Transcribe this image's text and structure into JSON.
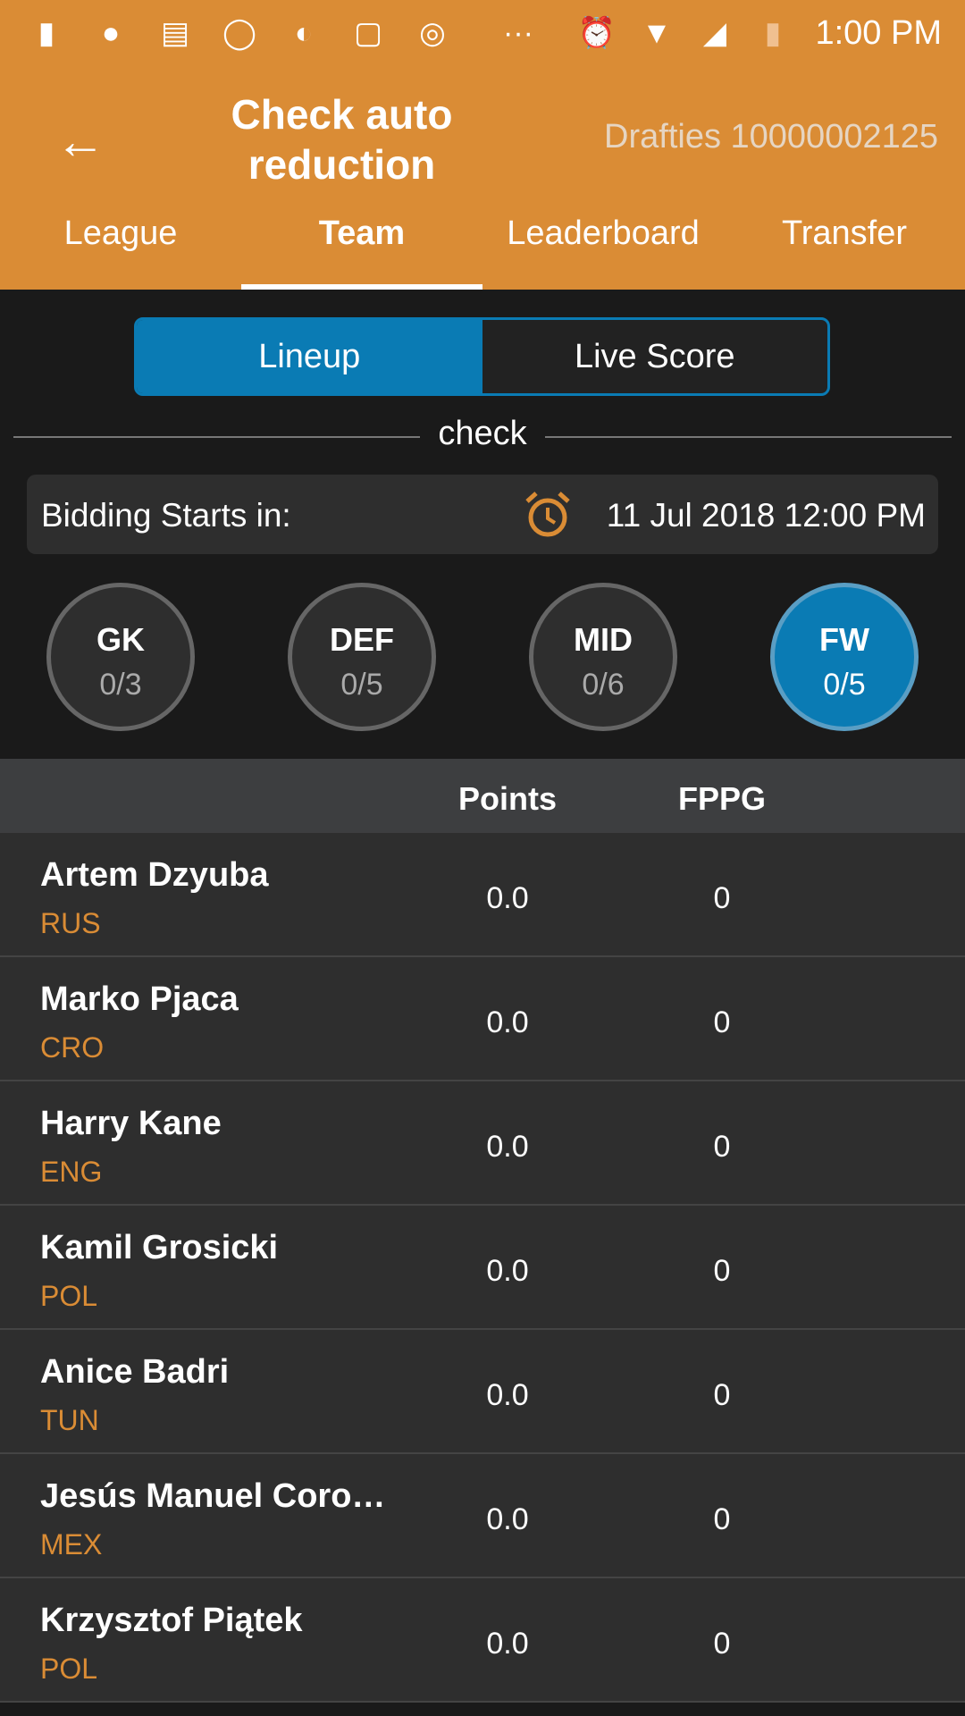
{
  "status_bar": {
    "time": "1:00 PM",
    "icons": [
      "battery-alert-icon",
      "hangouts-icon",
      "news-icon",
      "whatsapp-icon",
      "night-mode-icon",
      "app-icon",
      "instagram-icon",
      "more-dots-icon",
      "alarm-icon",
      "wifi-icon",
      "signal-icon",
      "battery-low-icon"
    ]
  },
  "toolbar": {
    "title": "Check auto reduction",
    "subtitle": "Drafties 10000002125"
  },
  "tabs": [
    {
      "label": "League"
    },
    {
      "label": "Team",
      "active": true
    },
    {
      "label": "Leaderboard"
    },
    {
      "label": "Transfer"
    }
  ],
  "segment": {
    "lineup": "Lineup",
    "live_score": "Live Score",
    "selected": "Lineup"
  },
  "section_label": "check",
  "bidding": {
    "label": "Bidding Starts in:",
    "time": "11 Jul 2018 12:00 PM"
  },
  "positions": [
    {
      "label": "GK",
      "count": "0/3"
    },
    {
      "label": "DEF",
      "count": "0/5"
    },
    {
      "label": "MID",
      "count": "0/6"
    },
    {
      "label": "FW",
      "count": "0/5",
      "active": true
    }
  ],
  "table": {
    "headers": {
      "points": "Points",
      "fppg": "FPPG"
    },
    "rows": [
      {
        "name": "Artem Dzyuba",
        "country": "RUS",
        "points": "0.0",
        "fppg": "0"
      },
      {
        "name": "Marko Pjaca",
        "country": "CRO",
        "points": "0.0",
        "fppg": "0"
      },
      {
        "name": "Harry Kane",
        "country": "ENG",
        "points": "0.0",
        "fppg": "0"
      },
      {
        "name": "Kamil Grosicki",
        "country": "POL",
        "points": "0.0",
        "fppg": "0"
      },
      {
        "name": "Anice Badri",
        "country": "TUN",
        "points": "0.0",
        "fppg": "0"
      },
      {
        "name": "Jesús Manuel Coro…",
        "country": "MEX",
        "points": "0.0",
        "fppg": "0"
      },
      {
        "name": "Krzysztof Piątek",
        "country": "POL",
        "points": "0.0",
        "fppg": "0"
      }
    ]
  },
  "colors": {
    "accent": "#da8c35",
    "selected": "#0a7bb4",
    "background": "#1a1a1a",
    "row": "#2e2e2e"
  }
}
